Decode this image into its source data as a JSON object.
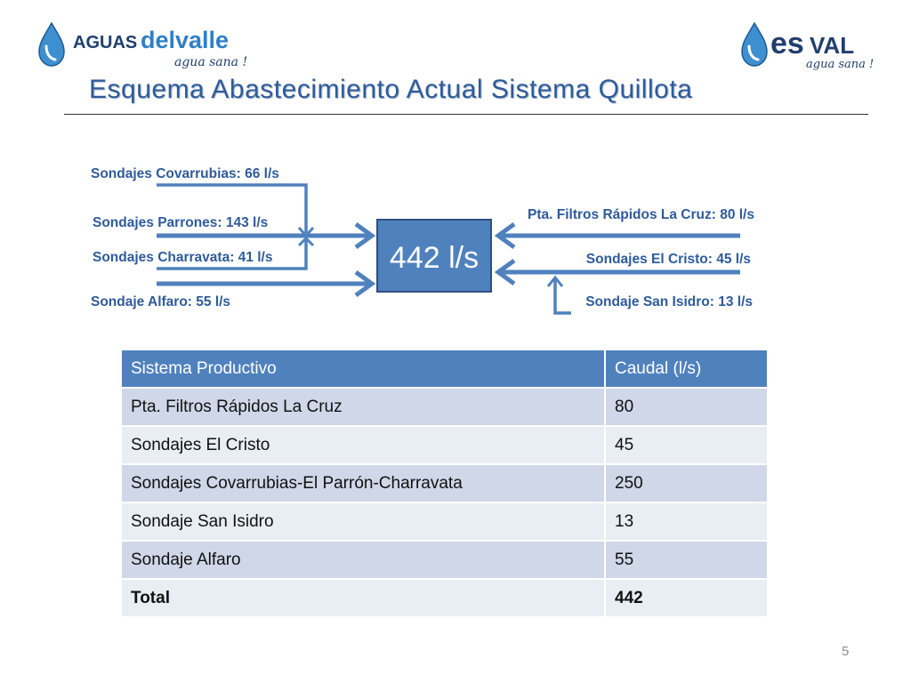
{
  "header": {
    "logo_left": {
      "word1": "AGUAS",
      "word2": "delvalle",
      "tagline": "agua sana !"
    },
    "logo_right": {
      "word1": "es",
      "word2": "VAL",
      "tagline": "agua sana !"
    },
    "title": "Esquema Abastecimiento Actual Sistema Quillota"
  },
  "diagram": {
    "center_value": "442 l/s",
    "inputs_left": [
      "Sondajes Covarrubias: 66 l/s",
      "Sondajes Parrones: 143 l/s",
      "Sondajes Charravata: 41 l/s",
      "Sondaje Alfaro: 55 l/s"
    ],
    "inputs_right": [
      "Pta. Filtros Rápidos La Cruz: 80 l/s",
      "Sondajes El Cristo: 45 l/s",
      "Sondaje San Isidro: 13 l/s"
    ],
    "colors": {
      "arrow": "#4f81bd",
      "box_fill": "#4f81bd",
      "box_border": "#2f4f7f",
      "label": "#2e5b9a"
    }
  },
  "table": {
    "headers": [
      "Sistema Productivo",
      "Caudal (l/s)"
    ],
    "rows": [
      [
        "Pta. Filtros Rápidos La Cruz",
        "80"
      ],
      [
        "Sondajes El Cristo",
        "45"
      ],
      [
        "Sondajes Covarrubias-El Parrón-Charravata",
        "250"
      ],
      [
        "Sondaje San Isidro",
        "13"
      ],
      [
        "Sondaje Alfaro",
        "55"
      ]
    ],
    "total": [
      "Total",
      "442"
    ]
  },
  "footer": {
    "page_number": "5"
  }
}
